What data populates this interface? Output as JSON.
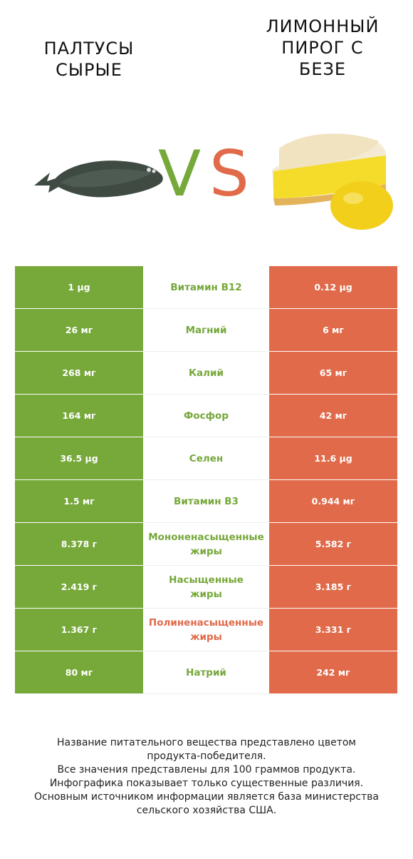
{
  "header": {
    "left_title": "ПАЛТУСЫ СЫРЫЕ",
    "right_title": "ЛИМОННЫЙ ПИРОГ С БЕЗЕ",
    "vs_v": "V",
    "vs_s": "S"
  },
  "colors": {
    "left": "#76a83a",
    "right": "#e06a4a"
  },
  "rows": [
    {
      "left": "1 µg",
      "name": "Витамин B12",
      "right": "0.12 µg",
      "winner": "left"
    },
    {
      "left": "26 мг",
      "name": "Магний",
      "right": "6 мг",
      "winner": "left"
    },
    {
      "left": "268 мг",
      "name": "Калий",
      "right": "65 мг",
      "winner": "left"
    },
    {
      "left": "164 мг",
      "name": "Фосфор",
      "right": "42 мг",
      "winner": "left"
    },
    {
      "left": "36.5 µg",
      "name": "Селен",
      "right": "11.6 µg",
      "winner": "left"
    },
    {
      "left": "1.5 мг",
      "name": "Витамин B3",
      "right": "0.944 мг",
      "winner": "left"
    },
    {
      "left": "8.378 г",
      "name": [
        "Мононенасыщенные",
        "жиры"
      ],
      "right": "5.582 г",
      "winner": "left"
    },
    {
      "left": "2.419 г",
      "name": [
        "Насыщенные",
        "жиры"
      ],
      "right": "3.185 г",
      "winner": "left"
    },
    {
      "left": "1.367 г",
      "name": [
        "Полиненасыщенные",
        "жиры"
      ],
      "right": "3.331 г",
      "winner": "right"
    },
    {
      "left": "80 мг",
      "name": "Натрий",
      "right": "242 мг",
      "winner": "left"
    }
  ],
  "footer": {
    "line1": "Название питательного вещества представлено цветом",
    "line2": "продукта-победителя.",
    "line3": "Все значения представлены для 100 граммов продукта.",
    "line4": "Инфографика показывает только существенные различия.",
    "line5": "Основным источником информации является база министерства",
    "line6": "сельского хозяйства США."
  }
}
